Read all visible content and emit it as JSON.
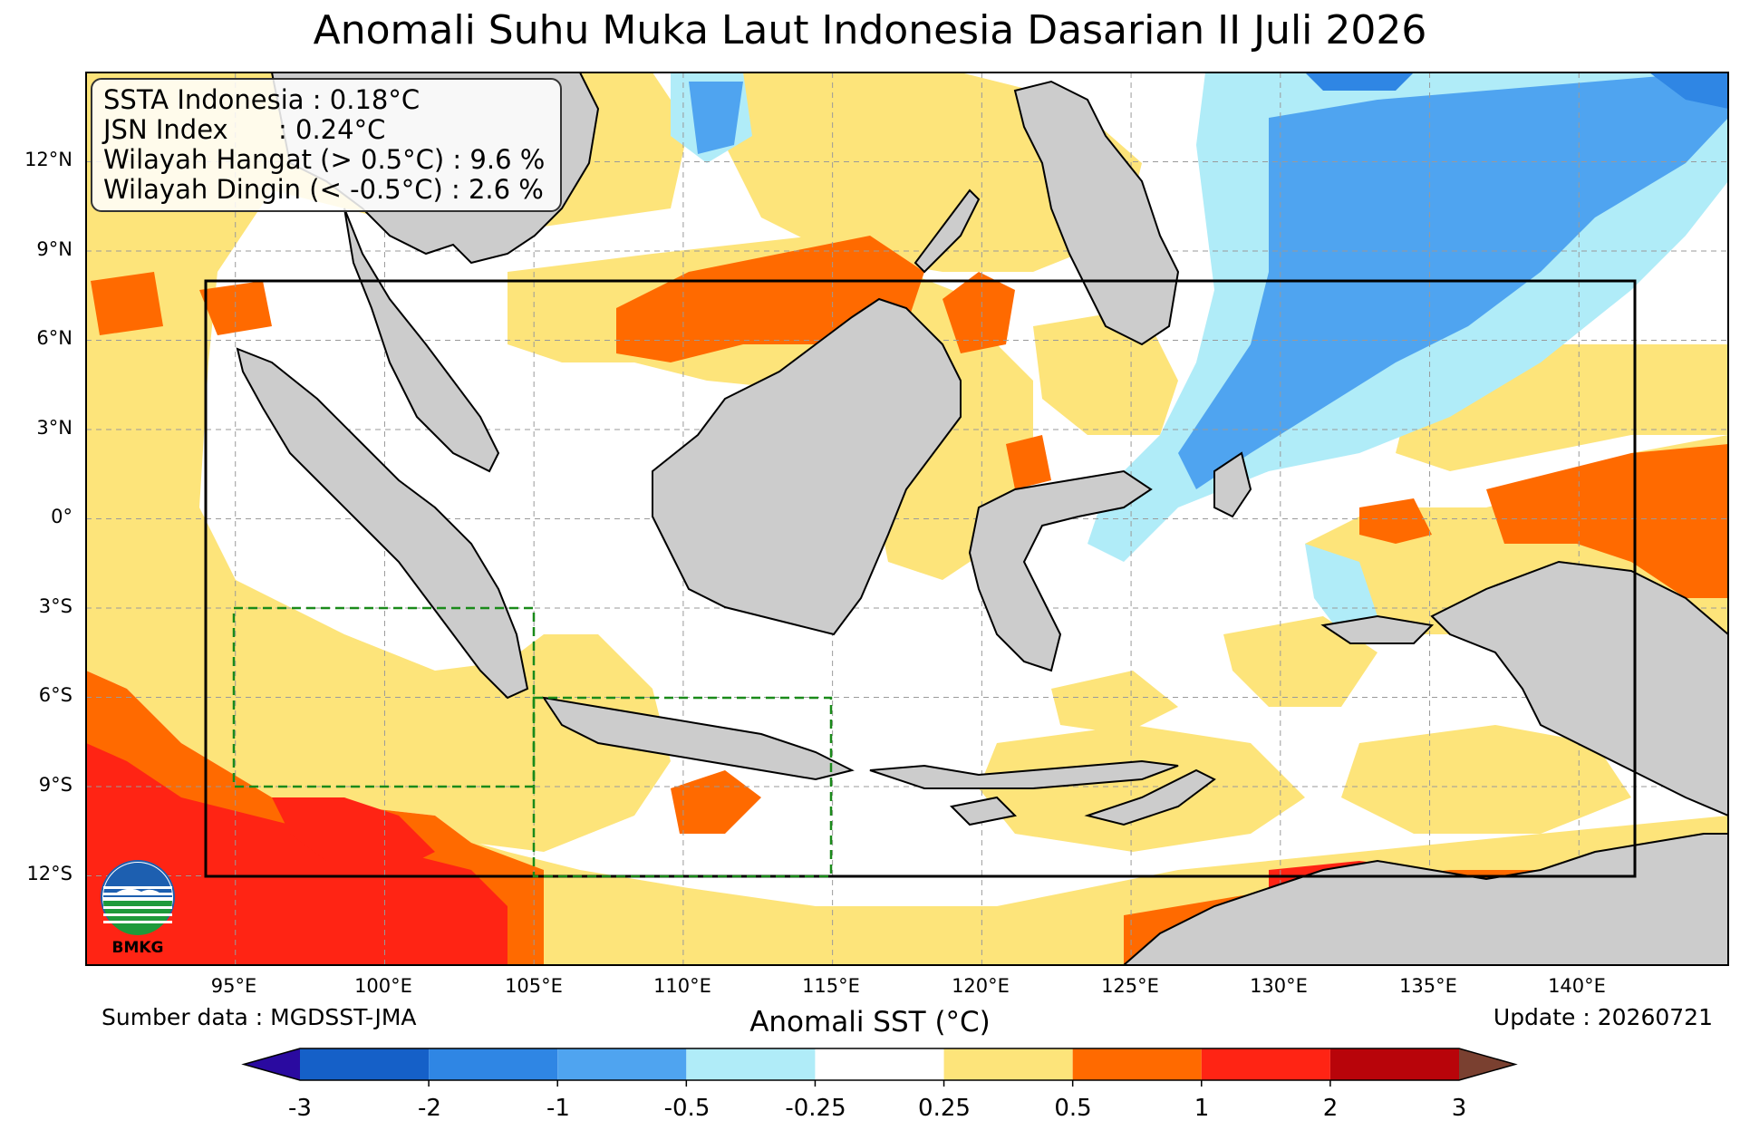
{
  "title": "Anomali Suhu Muka Laut Indonesia Dasarian II Juli 2026",
  "stats": {
    "line1": "SSTA Indonesia : 0.18°C",
    "line2": "JSN Index      : 0.24°C",
    "line3": "Wilayah Hangat (> 0.5°C) : 9.6 %",
    "line4": "Wilayah Dingin (< -0.5°C) : 2.6 %"
  },
  "lat_labels": [
    "12°N",
    "9°N",
    "6°N",
    "3°N",
    "0°",
    "3°S",
    "6°S",
    "9°S",
    "12°S"
  ],
  "lon_labels": [
    "95°E",
    "100°E",
    "105°E",
    "110°E",
    "115°E",
    "120°E",
    "125°E",
    "130°E",
    "135°E",
    "140°E"
  ],
  "source": "Sumber data : MGDSST-JMA",
  "update": "Update : 20260721",
  "colorbar": {
    "label": "Anomali SST (°C)",
    "ticks": [
      "-3",
      "-2",
      "-1",
      "-0.5",
      "-0.25",
      "0.25",
      "0.5",
      "1",
      "2",
      "3"
    ],
    "colors": [
      "#1560c8",
      "#2f86e4",
      "#4fa4f0",
      "#b0ecf8",
      "#ffffff",
      "#fde47a",
      "#ff6a00",
      "#ff2414",
      "#b8040a"
    ],
    "under_color": "#2a0aa0",
    "over_color": "#7a4030"
  },
  "logo": {
    "text": "BMKG"
  },
  "colors": {
    "land": "#cccccc",
    "warm": "#fde47a",
    "orange": "#ff6a00",
    "red": "#ff2414",
    "cool": "#b0ecf8",
    "blue": "#4fa4f0",
    "darkblue": "#2f86e4",
    "box": "#000000",
    "subregion": "#1a8a1a"
  },
  "chart_data": {
    "type": "heatmap",
    "title": "Anomali Suhu Muka Laut Indonesia Dasarian II Juli 2026",
    "xlabel": "",
    "ylabel": "",
    "xlim": [
      90,
      145
    ],
    "ylim": [
      -15,
      15
    ],
    "colorbar_label": "Anomali SST (°C)",
    "levels": [
      -3,
      -2,
      -1,
      -0.5,
      -0.25,
      0.25,
      0.5,
      1,
      2,
      3
    ],
    "domain_box": {
      "lon": [
        94,
        142
      ],
      "lat": [
        -12,
        8
      ]
    },
    "subregions": [
      {
        "lon": [
          95,
          105
        ],
        "lat": [
          -9,
          -3
        ]
      },
      {
        "lon": [
          105,
          115
        ],
        "lat": [
          -12,
          -6
        ]
      }
    ],
    "grid": true
  }
}
